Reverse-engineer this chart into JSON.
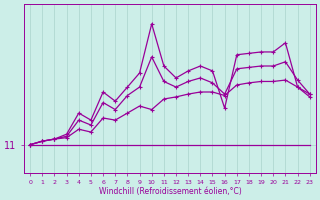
{
  "background_color": "#cceee8",
  "line_color": "#990099",
  "grid_color": "#aad4cc",
  "xlabel": "Windchill (Refroidissement éolien,°C)",
  "x_ticks": [
    0,
    1,
    2,
    3,
    4,
    5,
    6,
    7,
    8,
    9,
    10,
    11,
    12,
    13,
    14,
    15,
    16,
    17,
    18,
    19,
    20,
    21,
    22,
    23
  ],
  "ytick_val": 11.0,
  "ylim": [
    10.6,
    13.0
  ],
  "flat": [
    11.0,
    11.0,
    11.0,
    11.0,
    11.0,
    11.0,
    11.0,
    11.0,
    11.0,
    11.0,
    11.0,
    11.0,
    11.0,
    11.0,
    11.0,
    11.0,
    11.0,
    11.0,
    11.0,
    11.0,
    11.0,
    11.0,
    11.0,
    11.0
  ],
  "s1": [
    11.0,
    11.05,
    11.08,
    11.1,
    11.22,
    11.18,
    11.38,
    11.35,
    11.45,
    11.55,
    11.5,
    11.65,
    11.68,
    11.72,
    11.75,
    11.75,
    11.7,
    11.85,
    11.88,
    11.9,
    11.9,
    11.92,
    11.82,
    11.72
  ],
  "s2": [
    11.0,
    11.05,
    11.08,
    11.12,
    11.35,
    11.28,
    11.6,
    11.5,
    11.7,
    11.82,
    12.25,
    11.9,
    11.82,
    11.9,
    11.95,
    11.88,
    11.72,
    12.08,
    12.1,
    12.12,
    12.12,
    12.18,
    11.92,
    11.72
  ],
  "s3": [
    11.0,
    11.05,
    11.08,
    11.15,
    11.45,
    11.35,
    11.75,
    11.62,
    11.82,
    12.02,
    12.72,
    12.12,
    11.95,
    12.05,
    12.12,
    12.05,
    11.52,
    12.28,
    12.3,
    12.32,
    12.32,
    12.45,
    11.82,
    11.68
  ]
}
